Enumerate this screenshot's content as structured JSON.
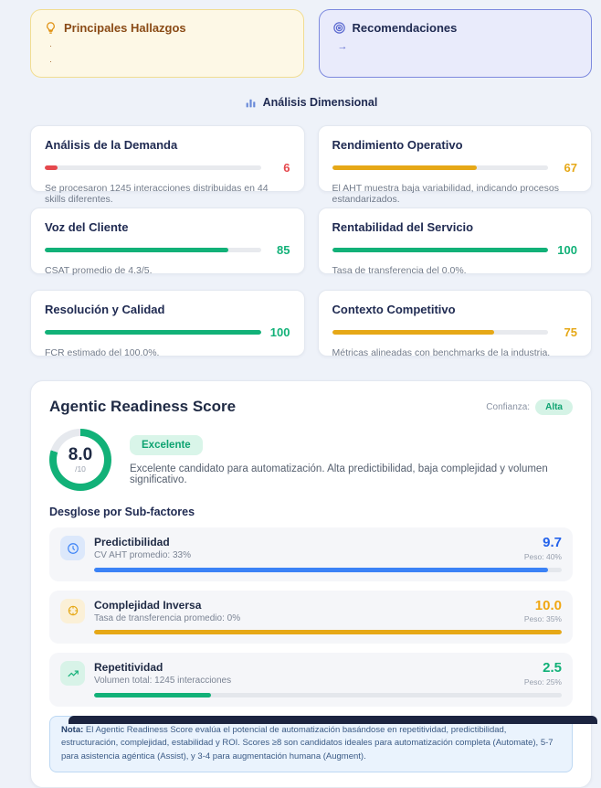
{
  "colors": {
    "red": "#e5484d",
    "amber": "#e6a817",
    "green": "#12b178",
    "blue": "#3b82f6",
    "navy": "#202b52",
    "page_bg": "#eef2f9",
    "footer_bar": "#1c2440"
  },
  "top_cards": {
    "hallazgos": {
      "title": "Principales Hallazgos",
      "bullets": [
        "·",
        "·"
      ]
    },
    "recomendaciones": {
      "title": "Recomendaciones",
      "arrow": "→"
    }
  },
  "section": {
    "title": "Análisis Dimensional"
  },
  "dimension_cards": [
    {
      "title": "Análisis de la Demanda",
      "score": "6",
      "pct": 6,
      "description": "Se procesaron 1245 interacciones distribuidas en 44 skills diferentes."
    },
    {
      "title": "Rendimiento Operativo",
      "score": "67",
      "pct": 67,
      "description": "El AHT muestra baja variabilidad, indicando procesos estandarizados."
    },
    {
      "title": "Voz del Cliente",
      "score": "85",
      "pct": 85,
      "description": "CSAT promedio de 4.3/5."
    },
    {
      "title": "Rentabilidad del Servicio",
      "score": "100",
      "pct": 100,
      "description": "Tasa de transferencia del 0.0%."
    },
    {
      "title": "Resolución y Calidad",
      "score": "100",
      "pct": 100,
      "description": "FCR estimado del 100.0%."
    },
    {
      "title": "Contexto Competitivo",
      "score": "75",
      "pct": 75,
      "description": "Métricas alineadas con benchmarks de la industria."
    }
  ],
  "agentic": {
    "title": "Agentic Readiness Score",
    "confidence_label": "Confianza:",
    "confidence_value": "Alta",
    "score": "8.0",
    "score_max": "/10",
    "score_pct": 80,
    "badge": "Excelente",
    "description": "Excelente candidato para automatización. Alta predictibilidad, baja complejidad y volumen significativo.",
    "subfactors_title": "Desglose por Sub-factores",
    "subfactors": [
      {
        "name": "Predictibilidad",
        "detail": "CV AHT promedio: 33%",
        "score": "9.7",
        "weight": "Peso: 40%",
        "pct": 97
      },
      {
        "name": "Complejidad Inversa",
        "detail": "Tasa de transferencia promedio: 0%",
        "score": "10.0",
        "weight": "Peso: 35%",
        "pct": 100
      },
      {
        "name": "Repetitividad",
        "detail": "Volumen total: 1245 interacciones",
        "score": "2.5",
        "weight": "Peso: 25%",
        "pct": 25
      }
    ],
    "note_label": "Nota:",
    "note_text": " El Agentic Readiness Score evalúa el potencial de automatización basándose en repetitividad, predictibilidad, estructuración, complejidad, estabilidad y ROI. Scores ≥8 son candidatos ideales para automatización completa (Automate), 5-7 para asistencia agéntica (Assist), y 3-4 para augmentación humana (Augment)."
  }
}
